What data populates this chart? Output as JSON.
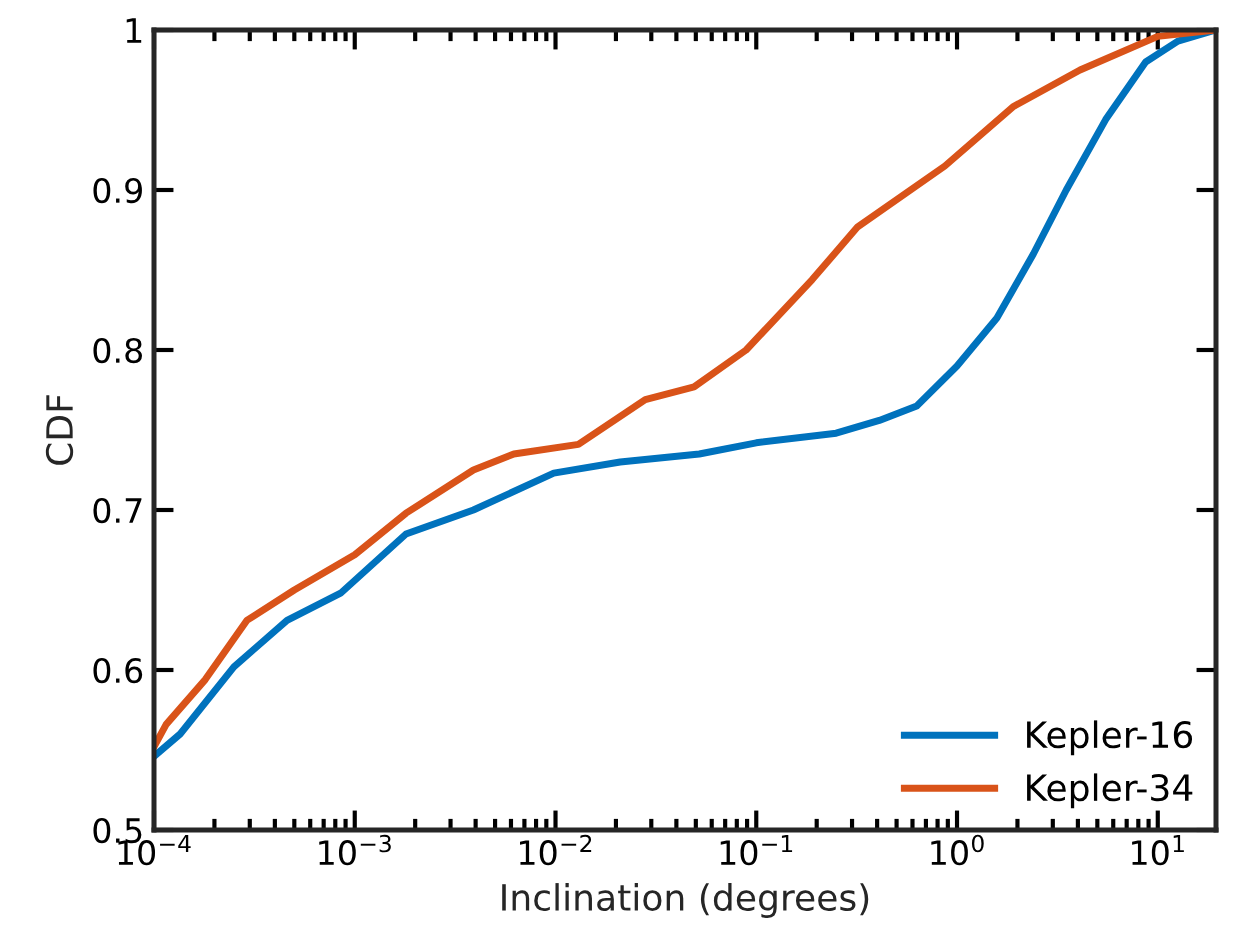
{
  "chart_data": {
    "type": "line",
    "xlabel": "Inclination (degrees)",
    "ylabel": "CDF",
    "log": "x",
    "xlim": [
      0.0001,
      19.5
    ],
    "xticks": [
      {
        "value": 0.0001,
        "label": "10$^{−4}$"
      },
      {
        "value": 0.001,
        "label": "10$^{−3}$"
      },
      {
        "value": 0.01,
        "label": "10$^{−2}$"
      },
      {
        "value": 0.1,
        "label": "10$^{−1}$"
      },
      {
        "value": 1,
        "label": "10$^{0}$"
      },
      {
        "value": 10,
        "label": "10$^{1}$"
      }
    ],
    "ylim": [
      0.5,
      1
    ],
    "yticks": [
      0.5,
      0.6,
      0.7,
      0.8,
      0.9,
      1
    ],
    "grid": false,
    "legend": "bottom right",
    "marker": "none",
    "line_style": "solid",
    "series": [
      {
        "name": "Kepler-16",
        "color": "#0072bd",
        "x": [
          0.0001,
          0.000135,
          0.00025,
          0.00046,
          0.00085,
          0.0018,
          0.0039,
          0.0098,
          0.021,
          0.052,
          0.1,
          0.25,
          0.41,
          0.63,
          1.0,
          1.58,
          2.4,
          3.5,
          5.5,
          8.7,
          12.6,
          19.5
        ],
        "values": [
          0.546,
          0.56,
          0.602,
          0.631,
          0.648,
          0.685,
          0.7,
          0.723,
          0.73,
          0.735,
          0.742,
          0.748,
          0.756,
          0.765,
          0.79,
          0.82,
          0.86,
          0.9,
          0.944,
          0.98,
          0.993,
          1.0
        ]
      },
      {
        "name": "Kepler-34",
        "color": "#d95319",
        "x": [
          0.0001,
          0.000115,
          0.00018,
          0.00029,
          0.0005,
          0.001,
          0.0018,
          0.0039,
          0.0062,
          0.013,
          0.028,
          0.049,
          0.089,
          0.19,
          0.32,
          0.87,
          1.9,
          4.1,
          10,
          19.5
        ],
        "values": [
          0.552,
          0.566,
          0.594,
          0.631,
          0.65,
          0.672,
          0.698,
          0.725,
          0.735,
          0.741,
          0.769,
          0.777,
          0.8,
          0.844,
          0.877,
          0.915,
          0.952,
          0.975,
          0.996,
          1.0
        ]
      }
    ]
  }
}
